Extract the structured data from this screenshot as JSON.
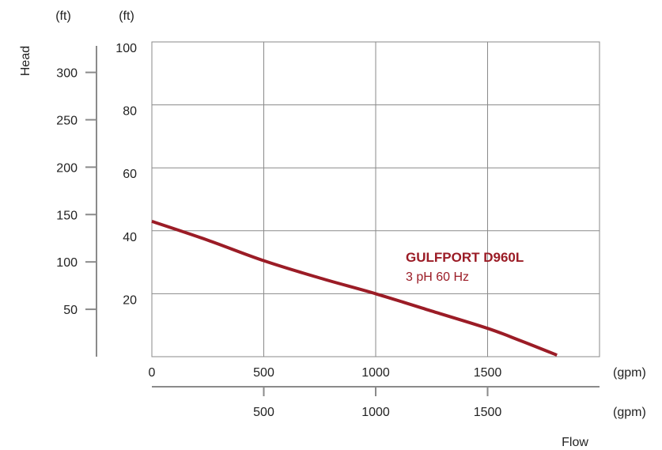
{
  "chart_data": {
    "type": "line",
    "ylabel": "Head",
    "xlabel": "Flow",
    "left_axis_unit": "(ft)",
    "inner_axis_unit": "(ft)",
    "x_top_unit": "(gpm)",
    "x_bottom_unit": "(gpm)",
    "x_range": [
      0,
      2000
    ],
    "y_range": [
      0,
      100
    ],
    "x_top_ticks": [
      "0",
      "500",
      "1000",
      "1500"
    ],
    "x_bottom_ticks": [
      "500",
      "1000",
      "1500"
    ],
    "y_inner_ticks": [
      "20",
      "40",
      "60",
      "80",
      "100"
    ],
    "y_outer_ticks": [
      "50",
      "100",
      "150",
      "200",
      "250",
      "300"
    ],
    "grid": true,
    "series": [
      {
        "name": "GULFPORT D960L",
        "subtitle": "3 pH 60 Hz",
        "color": "#9b1c26",
        "x": [
          0,
          250,
          500,
          750,
          1000,
          1250,
          1500,
          1650,
          1810
        ],
        "y": [
          43,
          37,
          30.5,
          25,
          20,
          14.5,
          9,
          5,
          0.5
        ]
      }
    ]
  }
}
